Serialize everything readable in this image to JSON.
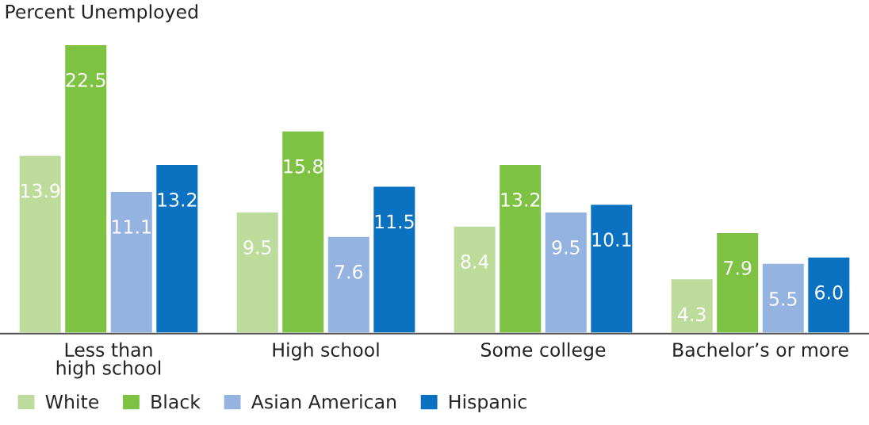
{
  "chart_data": {
    "type": "bar",
    "ylabel": "Percent Unemployed",
    "categories": [
      "Less than\nhigh school",
      "High school",
      "Some college",
      "Bachelor’s or more"
    ],
    "series": [
      {
        "name": "White",
        "color": "#bddc9c",
        "values": [
          13.9,
          9.5,
          8.4,
          4.3
        ],
        "value_labels": [
          "13.9",
          "9.5",
          "8.4",
          "4.3"
        ]
      },
      {
        "name": "Black",
        "color": "#7dc242",
        "values": [
          22.5,
          15.8,
          13.2,
          7.9
        ],
        "value_labels": [
          "22.5",
          "15.8",
          "13.2",
          "7.9"
        ]
      },
      {
        "name": "Asian American",
        "color": "#94b3e0",
        "values": [
          11.1,
          7.6,
          9.5,
          5.5
        ],
        "value_labels": [
          "11.1",
          "7.6",
          "9.5",
          "5.5"
        ]
      },
      {
        "name": "Hispanic",
        "color": "#0a72c1",
        "values": [
          13.2,
          11.5,
          10.1,
          6.0
        ],
        "value_labels": [
          "13.2",
          "11.5",
          "10.1",
          "6.0"
        ]
      }
    ],
    "grid": false,
    "legend": "bottom left"
  }
}
